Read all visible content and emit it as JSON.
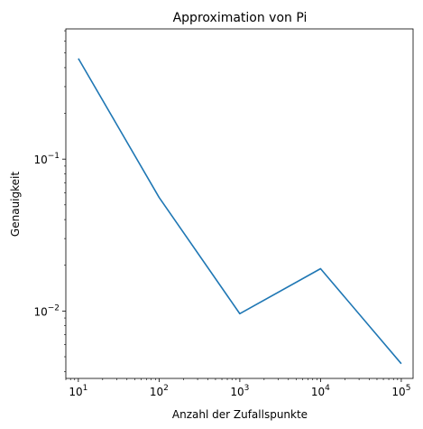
{
  "chart_data": {
    "type": "line",
    "title": "Approximation von Pi",
    "xlabel": "Anzahl der Zufallspunkte",
    "ylabel": "Genauigkeit",
    "xscale": "log",
    "yscale": "log",
    "xlim": [
      7,
      140000
    ],
    "ylim": [
      0.0036,
      0.72
    ],
    "grid": false,
    "legend": "none",
    "line_color": "#1f77b4",
    "x": [
      10,
      100,
      1000,
      10000,
      100000
    ],
    "y": [
      0.46,
      0.056,
      0.0096,
      0.019,
      0.0045
    ],
    "x_ticks": [
      {
        "value": 10,
        "base": "10",
        "exp": "1"
      },
      {
        "value": 100,
        "base": "10",
        "exp": "2"
      },
      {
        "value": 1000,
        "base": "10",
        "exp": "3"
      },
      {
        "value": 10000,
        "base": "10",
        "exp": "4"
      },
      {
        "value": 100000,
        "base": "10",
        "exp": "5"
      }
    ],
    "y_ticks": [
      {
        "value": 0.1,
        "base": "10",
        "exp": "−1"
      },
      {
        "value": 0.01,
        "base": "10",
        "exp": "−2"
      }
    ]
  }
}
